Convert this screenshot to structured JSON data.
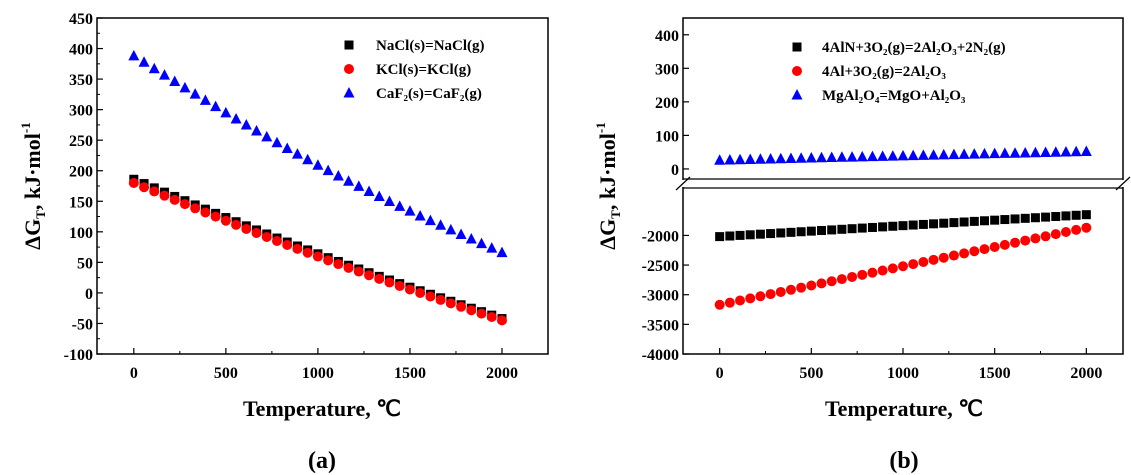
{
  "chart_data": [
    {
      "type": "scatter",
      "panel_label": "(a)",
      "xlabel": "Temperature, ℃",
      "ylabel": "ΔG",
      "ylabel_sub": "T",
      "ylabel_unit": ", kJ·mol",
      "ylabel_sup": "-1",
      "xlim": [
        -200,
        2250
      ],
      "ylim": [
        -100,
        450
      ],
      "xticks": [
        0,
        500,
        1000,
        1500,
        2000
      ],
      "yticks": [
        -100,
        -50,
        0,
        50,
        100,
        150,
        200,
        250,
        300,
        350,
        400,
        450
      ],
      "legend_position": "top-right",
      "x": [
        0,
        2000
      ],
      "series": [
        {
          "name": "NaCl(s)=NaCl(g)",
          "marker": "square",
          "color": "#000000",
          "start": 186,
          "end": -42,
          "points": 37
        },
        {
          "name": "KCl(s)=KCl(g)",
          "marker": "circle",
          "color": "#ff0000",
          "start": 180,
          "end": -45,
          "points": 37
        },
        {
          "name": "CaF₂(s)=CaF₂(g)",
          "marker": "triangle",
          "color": "#0000ff",
          "start": 388,
          "end": 66,
          "points": 37
        }
      ]
    },
    {
      "type": "scatter",
      "panel_label": "(b)",
      "xlabel": "Temperature, ℃",
      "ylabel": "ΔG",
      "ylabel_sub": "T",
      "ylabel_unit": ", kJ·mol",
      "ylabel_sup": "-1",
      "xlim": [
        -200,
        2200
      ],
      "broken_axis": true,
      "ylim_upper": [
        -30,
        450
      ],
      "ylim_lower": [
        -4000,
        -1200
      ],
      "yticks_upper": [
        0,
        100,
        200,
        300,
        400
      ],
      "yticks_lower": [
        -4000,
        -3500,
        -3000,
        -2500,
        -2000
      ],
      "xticks": [
        0,
        500,
        1000,
        1500,
        2000
      ],
      "legend_position": "top-right",
      "x": [
        0,
        2000
      ],
      "series": [
        {
          "name": "4AlN+3O₂(g)=2Al₂O₃+2N₂(g)",
          "marker": "square",
          "color": "#000000",
          "start": -2020,
          "end": -1650,
          "points": 37,
          "segment": "lower"
        },
        {
          "name": "4Al+3O₂(g)=2Al₂O₃",
          "marker": "circle",
          "color": "#ff0000",
          "start": -3170,
          "end": -1870,
          "points": 37,
          "segment": "lower"
        },
        {
          "name": "MgAl₂O₄=MgO+Al₂O₃",
          "marker": "triangle",
          "color": "#0000ff",
          "start": 26,
          "end": 52,
          "points": 37,
          "segment": "upper"
        }
      ]
    }
  ]
}
